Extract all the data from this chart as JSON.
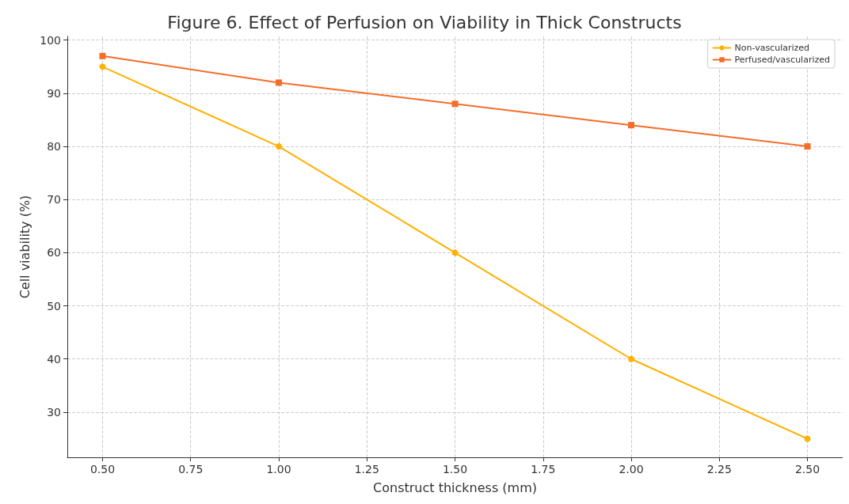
{
  "chart_data": {
    "type": "line",
    "title": "Figure 6. Effect of Perfusion on Viability in Thick Constructs",
    "xlabel": "Construct thickness (mm)",
    "ylabel": "Cell viability (%)",
    "x": [
      0.5,
      1.0,
      1.5,
      2.0,
      2.5
    ],
    "series": [
      {
        "name": "Non-vascularized",
        "color": "#ffb000",
        "values": [
          95,
          80,
          60,
          40,
          25
        ],
        "marker": "circle"
      },
      {
        "name": "Perfused/vascularized",
        "color": "#f46d2a",
        "values": [
          97,
          92,
          88,
          84,
          80
        ],
        "marker": "square"
      }
    ],
    "xlim": [
      0.4,
      2.6
    ],
    "xticks": [
      {
        "value": 0.5,
        "label": "0.50"
      },
      {
        "value": 0.75,
        "label": "0.75"
      },
      {
        "value": 1.0,
        "label": "1.00"
      },
      {
        "value": 1.25,
        "label": "1.25"
      },
      {
        "value": 1.5,
        "label": "1.50"
      },
      {
        "value": 1.75,
        "label": "1.75"
      },
      {
        "value": 2.0,
        "label": "2.00"
      },
      {
        "value": 2.25,
        "label": "2.25"
      },
      {
        "value": 2.5,
        "label": "2.50"
      }
    ],
    "ylim": [
      21.5,
      100.7
    ],
    "yticks": [
      30,
      40,
      50,
      60,
      70,
      80,
      90,
      100
    ],
    "grid": true,
    "legend": "top right",
    "line_style": "solid"
  }
}
